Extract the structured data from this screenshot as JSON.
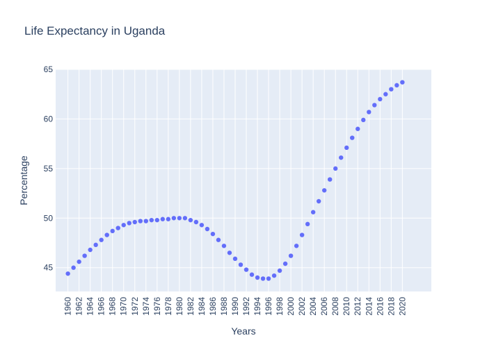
{
  "chart_data": {
    "type": "scatter",
    "title": "Life Expectancy in Uganda",
    "xlabel": "Years",
    "ylabel": "Percentage",
    "xlim": [
      1957.8,
      2025.2
    ],
    "ylim": [
      42.6,
      65
    ],
    "x_ticks": [
      1960,
      1962,
      1964,
      1966,
      1968,
      1970,
      1972,
      1974,
      1976,
      1978,
      1980,
      1982,
      1984,
      1986,
      1988,
      1990,
      1992,
      1994,
      1996,
      1998,
      2000,
      2002,
      2004,
      2006,
      2008,
      2010,
      2012,
      2014,
      2016,
      2018,
      2020
    ],
    "y_ticks": [
      45,
      50,
      55,
      60,
      65
    ],
    "grid": true,
    "legend": "none",
    "colors": {
      "plot_bg": "#e5ecf6",
      "marker": "#636efa",
      "text": "#2a3f5f"
    },
    "series": [
      {
        "x": [
          1960,
          1961,
          1962,
          1963,
          1964,
          1965,
          1966,
          1967,
          1968,
          1969,
          1970,
          1971,
          1972,
          1973,
          1974,
          1975,
          1976,
          1977,
          1978,
          1979,
          1980,
          1981,
          1982,
          1983,
          1984,
          1985,
          1986,
          1987,
          1988,
          1989,
          1990,
          1991,
          1992,
          1993,
          1994,
          1995,
          1996,
          1997,
          1998,
          1999,
          2000,
          2001,
          2002,
          2003,
          2004,
          2005,
          2006,
          2007,
          2008,
          2009,
          2010,
          2011,
          2012,
          2013,
          2014,
          2015,
          2016,
          2017,
          2018,
          2019,
          2020
        ],
        "y": [
          44.4,
          45.0,
          45.6,
          46.2,
          46.8,
          47.3,
          47.8,
          48.3,
          48.7,
          49.0,
          49.3,
          49.5,
          49.6,
          49.7,
          49.7,
          49.8,
          49.8,
          49.9,
          49.9,
          50.0,
          50.0,
          50.0,
          49.8,
          49.6,
          49.3,
          48.9,
          48.4,
          47.8,
          47.2,
          46.5,
          45.9,
          45.3,
          44.8,
          44.3,
          44.0,
          43.9,
          43.9,
          44.2,
          44.7,
          45.4,
          46.2,
          47.2,
          48.3,
          49.4,
          50.6,
          51.7,
          52.8,
          53.9,
          55.0,
          56.1,
          57.1,
          58.1,
          59.0,
          59.9,
          60.7,
          61.4,
          62.0,
          62.5,
          63.0,
          63.4,
          63.7
        ]
      }
    ]
  }
}
